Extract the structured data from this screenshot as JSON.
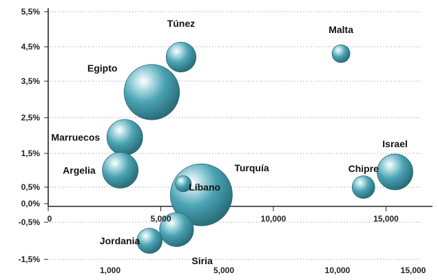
{
  "chart_data": {
    "type": "bubble",
    "y_ticks": [
      "5,5%",
      "4,5%",
      "3,5%",
      "2,5%",
      "1,5%",
      "0,5%",
      "0,0%",
      "-0,5%",
      "-1,5%"
    ],
    "x_ticks_main": [
      "0",
      "5,000",
      "10,000",
      "15,000"
    ],
    "x_ticks_lower": [
      "1,000",
      "5,000",
      "10,000",
      "15,000"
    ],
    "xlim": [
      0,
      17500
    ],
    "ylim": [
      -1.5,
      5.5
    ],
    "grid": true,
    "bubble_color": "#3d96a6",
    "points": [
      {
        "label": "Túnez",
        "x": 5900,
        "y": 4.2,
        "size": 0.7
      },
      {
        "label": "Malta",
        "x": 13000,
        "y": 4.3,
        "size": 0.25
      },
      {
        "label": "Egipto",
        "x": 4600,
        "y": 3.2,
        "size": 2.4
      },
      {
        "label": "Marruecos",
        "x": 3400,
        "y": 1.95,
        "size": 1.0
      },
      {
        "label": "Israel",
        "x": 15400,
        "y": 0.95,
        "size": 1.0
      },
      {
        "label": "Argelia",
        "x": 3200,
        "y": 1.0,
        "size": 1.0
      },
      {
        "label": "Turquía",
        "x": 6800,
        "y": 0.3,
        "size": 3.0
      },
      {
        "label": "Chipre",
        "x": 14000,
        "y": 0.5,
        "size": 0.4
      },
      {
        "label": "Líbano",
        "x": 6000,
        "y": 0.6,
        "size": 0.2
      },
      {
        "label": "Siria",
        "x": 5700,
        "y": -0.7,
        "size": 0.9
      },
      {
        "label": "Jordania",
        "x": 4500,
        "y": -1.0,
        "size": 0.5
      }
    ]
  }
}
